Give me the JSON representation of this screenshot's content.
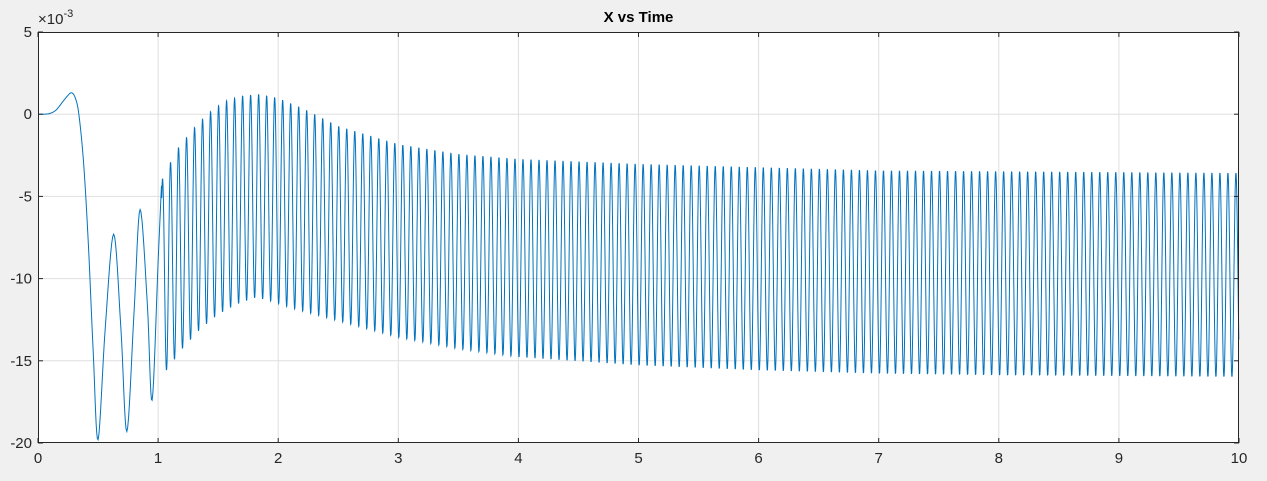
{
  "chart_data": {
    "type": "line",
    "title": "X vs Time",
    "xlabel": "",
    "ylabel": "",
    "xlim": [
      0,
      10
    ],
    "ylim": [
      -20,
      5
    ],
    "x_ticks": [
      0,
      1,
      2,
      3,
      4,
      5,
      6,
      7,
      8,
      9,
      10
    ],
    "y_ticks": [
      -20,
      -15,
      -10,
      -5,
      0,
      5
    ],
    "y_exponent_label": "×10",
    "y_exponent": "-3",
    "grid": true,
    "colors": {
      "line": "#0072bd",
      "grid": "#dfdfdf",
      "axes": "#262626",
      "axes_bg": "#ffffff",
      "figure_bg": "#f0f0f0"
    },
    "series": [
      {
        "values_description_points": [
          [
            0.0,
            0.0
          ],
          [
            0.05,
            0.0
          ],
          [
            0.1,
            0.05
          ],
          [
            0.15,
            0.25
          ],
          [
            0.2,
            0.7
          ],
          [
            0.25,
            1.15
          ],
          [
            0.28,
            1.3
          ],
          [
            0.31,
            1.0
          ],
          [
            0.34,
            0.0
          ],
          [
            0.38,
            -3.0
          ],
          [
            0.42,
            -8.0
          ],
          [
            0.46,
            -14.5
          ],
          [
            0.5,
            -19.8
          ],
          [
            0.56,
            -13.0
          ],
          [
            0.63,
            -7.3
          ],
          [
            0.69,
            -13.0
          ],
          [
            0.74,
            -19.3
          ],
          [
            0.8,
            -12.0
          ],
          [
            0.85,
            -5.8
          ],
          [
            0.91,
            -11.5
          ],
          [
            0.95,
            -17.4
          ],
          [
            1.0,
            -9.0
          ],
          [
            1.03,
            -4.0
          ]
        ],
        "oscillation": {
          "start_time": 1.03,
          "period": 0.0667,
          "first_trough_time": 1.07,
          "envelope_top": [
            [
              1.03,
              -4.0
            ],
            [
              1.15,
              -2.2
            ],
            [
              1.3,
              -0.8
            ],
            [
              1.42,
              0.1
            ],
            [
              1.55,
              0.8
            ],
            [
              1.7,
              1.15
            ],
            [
              1.85,
              1.25
            ],
            [
              2.0,
              1.0
            ],
            [
              2.2,
              0.4
            ],
            [
              2.5,
              -0.7
            ],
            [
              3.0,
              -1.8
            ],
            [
              3.5,
              -2.4
            ],
            [
              4.0,
              -2.7
            ],
            [
              5.0,
              -3.0
            ],
            [
              6.0,
              -3.2
            ],
            [
              7.0,
              -3.4
            ],
            [
              8.0,
              -3.45
            ],
            [
              9.0,
              -3.5
            ],
            [
              10.0,
              -3.55
            ]
          ],
          "envelope_bottom": [
            [
              1.07,
              -15.6
            ],
            [
              1.2,
              -14.3
            ],
            [
              1.35,
              -13.1
            ],
            [
              1.5,
              -12.2
            ],
            [
              1.65,
              -11.6
            ],
            [
              1.8,
              -11.2
            ],
            [
              1.9,
              -11.3
            ],
            [
              2.1,
              -11.8
            ],
            [
              2.5,
              -12.6
            ],
            [
              3.0,
              -13.6
            ],
            [
              3.5,
              -14.3
            ],
            [
              4.0,
              -14.8
            ],
            [
              5.0,
              -15.3
            ],
            [
              6.0,
              -15.6
            ],
            [
              7.0,
              -15.8
            ],
            [
              8.0,
              -15.9
            ],
            [
              9.0,
              -15.95
            ],
            [
              10.0,
              -16.0
            ]
          ]
        }
      }
    ]
  }
}
